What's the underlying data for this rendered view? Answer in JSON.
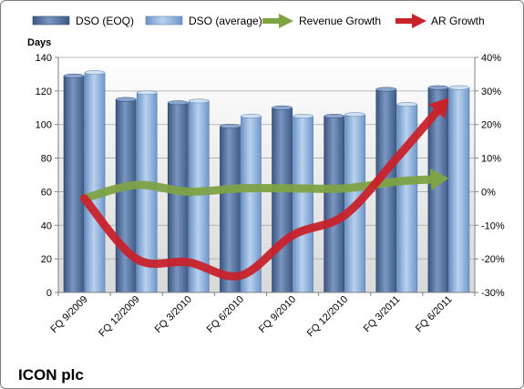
{
  "chart_data": {
    "type": "bar",
    "company": "ICON plc",
    "y_left_title": "Days",
    "categories": [
      "FQ 9/2009",
      "FQ 12/2009",
      "FQ 3/2010",
      "FQ 6/2010",
      "FQ 9/2010",
      "FQ 12/2010",
      "FQ 3/2011",
      "FQ 6/2011"
    ],
    "y_left": {
      "min": 0,
      "max": 140,
      "ticks": [
        "0",
        "20",
        "40",
        "60",
        "80",
        "100",
        "120",
        "140"
      ]
    },
    "y_right": {
      "min": -30,
      "max": 40,
      "ticks": [
        "-30%",
        "-20%",
        "-10%",
        "0%",
        "10%",
        "20%",
        "30%",
        "40%"
      ]
    },
    "legend_position": "top",
    "grid": true,
    "series": [
      {
        "name": "DSO (EOQ)",
        "kind": "bar",
        "axis": "left",
        "color": "#4f6e9c",
        "values": [
          129,
          115,
          113,
          99,
          110,
          105,
          121,
          122
        ]
      },
      {
        "name": "DSO (average)",
        "kind": "bar",
        "axis": "left",
        "color": "#8eb4e0",
        "values": [
          131,
          119,
          114,
          105,
          105,
          106,
          112,
          122
        ]
      },
      {
        "name": "Revenue Growth",
        "kind": "arrow-line",
        "axis": "right",
        "color": "#7ea244",
        "values": [
          -2,
          2,
          0,
          1,
          1,
          1,
          3,
          4
        ]
      },
      {
        "name": "AR Growth",
        "kind": "arrow-line",
        "axis": "right",
        "color": "#c8222b",
        "values": [
          -2,
          -20,
          -21,
          -25,
          -13,
          -7,
          10,
          28
        ]
      }
    ]
  }
}
